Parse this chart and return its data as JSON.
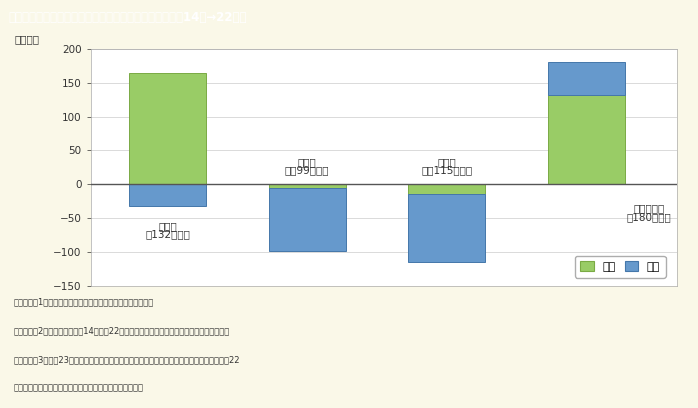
{
  "title": "第１－３－４図　男女別・産業別雇用者数の増減（平成14年→22年）",
  "ylabel": "（万人）",
  "ylim": [
    -150,
    200
  ],
  "yticks": [
    -150,
    -100,
    -50,
    0,
    50,
    100,
    150,
    200
  ],
  "categories": [
    "全産業",
    "建設業",
    "製造業",
    "医療・福祉"
  ],
  "subtitles": [
    "（132万人）",
    "（－99万人）",
    "（－115万人）",
    "（180万人）"
  ],
  "female_values": [
    165,
    -5,
    -15,
    132
  ],
  "male_values": [
    -33,
    -94,
    -100,
    48
  ],
  "female_color_top": "#c8e89a",
  "female_color_bot": "#99cc66",
  "male_color_top": "#aaccee",
  "male_color_bot": "#6699cc",
  "female_edge": "#7aaa44",
  "male_edge": "#4477aa",
  "bar_width": 0.55,
  "background_color": "#faf8e8",
  "plot_bg": "#ffffff",
  "title_bg": "#c8a878",
  "title_fg": "#ffffff",
  "label_color": "#333333",
  "grid_color": "#cccccc",
  "legend_female": "女性",
  "legend_male": "男性",
  "note_lines": [
    "（備考）　1．総務省「労働力調査（基本集計）」より作成。",
    "　　　　　2．（　）内は平成14年から22年の間で当該産業の雇用者数の増減（男女計）。",
    "　　　　　3．平成23年の結果は岩手県、宮城県及び福島県を除いた全国の実数であるため、22",
    "　　　　　　　年の結果を引き続き使用することとする。"
  ]
}
